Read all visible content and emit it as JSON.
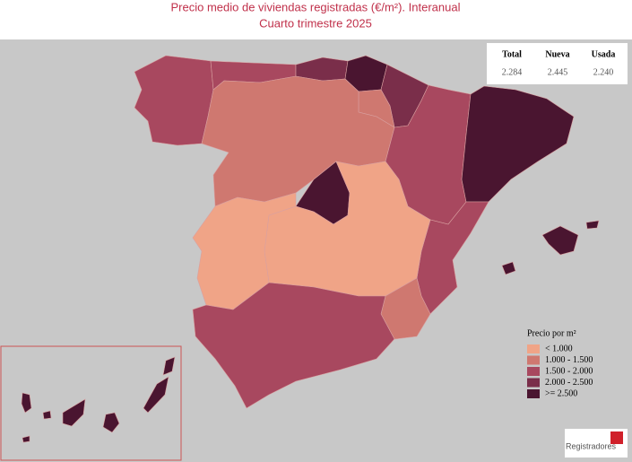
{
  "header": {
    "title": "Precio medio de viviendas registradas (€/m²). Interanual",
    "subtitle": "Cuarto trimestre 2025"
  },
  "summary_table": {
    "columns": [
      "Total",
      "Nueva",
      "Usada"
    ],
    "rows": [
      [
        "2.284",
        "2.445",
        "2.240"
      ]
    ]
  },
  "legend": {
    "title": "Precio por m²",
    "items": [
      {
        "label": "< 1.000",
        "color": "#f0a487"
      },
      {
        "label": "1.000 - 1.500",
        "color": "#cf7870"
      },
      {
        "label": "1.500 - 2.000",
        "color": "#a8485f"
      },
      {
        "label": "2.000 - 2.500",
        "color": "#7a2e4a"
      },
      {
        "label": ">= 2.500",
        "color": "#4a1530"
      }
    ]
  },
  "logo": {
    "text": "Registradores"
  }
}
